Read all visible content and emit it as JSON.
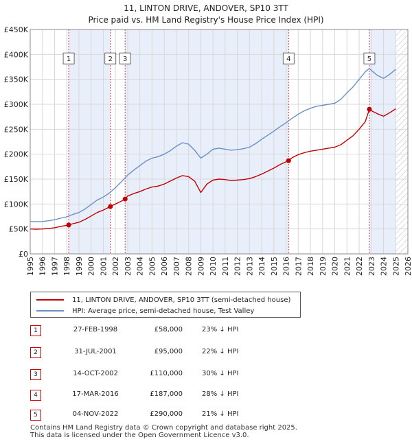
{
  "title_line1": "11, LINTON DRIVE, ANDOVER, SP10 3TT",
  "title_line2": "Price paid vs. HM Land Registry's House Price Index (HPI)",
  "chart_data": {
    "type": "line",
    "xlim": [
      1995,
      2026
    ],
    "ylim": [
      0,
      450000
    ],
    "x_ticks": [
      1995,
      1996,
      1997,
      1998,
      1999,
      2000,
      2001,
      2002,
      2003,
      2004,
      2005,
      2006,
      2007,
      2008,
      2009,
      2010,
      2011,
      2012,
      2013,
      2014,
      2015,
      2016,
      2017,
      2018,
      2019,
      2020,
      2021,
      2022,
      2023,
      2024,
      2025,
      2026
    ],
    "y_ticks": [
      {
        "value": 0,
        "label": "£0"
      },
      {
        "value": 50000,
        "label": "£50K"
      },
      {
        "value": 100000,
        "label": "£100K"
      },
      {
        "value": 150000,
        "label": "£150K"
      },
      {
        "value": 200000,
        "label": "£200K"
      },
      {
        "value": 250000,
        "label": "£250K"
      },
      {
        "value": 300000,
        "label": "£300K"
      },
      {
        "value": 350000,
        "label": "£350K"
      },
      {
        "value": 400000,
        "label": "£400K"
      },
      {
        "value": 450000,
        "label": "£450K"
      }
    ],
    "shaded_ranges": [
      [
        1998.16,
        2001.58
      ],
      [
        2002.79,
        2016.21
      ],
      [
        2022.84,
        2025.0
      ]
    ],
    "hatched_range": [
      2025.0,
      2026.0
    ],
    "series": [
      {
        "name": "HPI: Average price, semi-detached house, Test Valley",
        "color": "#6a8fc8",
        "points": [
          [
            1995,
            65000
          ],
          [
            1995.5,
            64500
          ],
          [
            1996,
            65000
          ],
          [
            1996.5,
            66500
          ],
          [
            1997,
            68500
          ],
          [
            1997.5,
            71500
          ],
          [
            1998,
            74500
          ],
          [
            1998.5,
            79000
          ],
          [
            1999,
            83000
          ],
          [
            1999.5,
            90000
          ],
          [
            2000,
            99000
          ],
          [
            2000.5,
            108000
          ],
          [
            2001,
            114000
          ],
          [
            2001.5,
            122000
          ],
          [
            2002,
            133000
          ],
          [
            2002.5,
            145000
          ],
          [
            2003,
            158000
          ],
          [
            2003.5,
            168000
          ],
          [
            2004,
            177000
          ],
          [
            2004.5,
            186000
          ],
          [
            2005,
            192000
          ],
          [
            2005.5,
            195000
          ],
          [
            2006,
            200000
          ],
          [
            2006.5,
            207000
          ],
          [
            2007,
            216000
          ],
          [
            2007.5,
            223000
          ],
          [
            2008,
            220000
          ],
          [
            2008.5,
            208000
          ],
          [
            2009,
            192000
          ],
          [
            2009.5,
            200000
          ],
          [
            2010,
            210000
          ],
          [
            2010.5,
            212000
          ],
          [
            2011,
            210000
          ],
          [
            2011.5,
            208000
          ],
          [
            2012,
            209000
          ],
          [
            2012.5,
            211000
          ],
          [
            2013,
            214000
          ],
          [
            2013.5,
            221000
          ],
          [
            2014,
            230000
          ],
          [
            2014.5,
            238000
          ],
          [
            2015,
            246000
          ],
          [
            2015.5,
            255000
          ],
          [
            2016,
            263000
          ],
          [
            2016.5,
            272000
          ],
          [
            2017,
            280000
          ],
          [
            2017.5,
            287000
          ],
          [
            2018,
            292000
          ],
          [
            2018.5,
            296000
          ],
          [
            2019,
            298000
          ],
          [
            2019.5,
            300000
          ],
          [
            2020,
            302000
          ],
          [
            2020.5,
            310000
          ],
          [
            2021,
            323000
          ],
          [
            2021.5,
            335000
          ],
          [
            2022,
            350000
          ],
          [
            2022.5,
            365000
          ],
          [
            2022.84,
            372000
          ],
          [
            2023,
            368000
          ],
          [
            2023.5,
            358000
          ],
          [
            2024,
            352000
          ],
          [
            2024.5,
            360000
          ],
          [
            2025,
            370000
          ]
        ]
      },
      {
        "name": "11, LINTON DRIVE, ANDOVER, SP10 3TT (semi-detached house)",
        "color": "#c00000",
        "points": [
          [
            1995,
            50000
          ],
          [
            1995.5,
            49500
          ],
          [
            1996,
            50000
          ],
          [
            1996.5,
            51000
          ],
          [
            1997,
            52500
          ],
          [
            1997.5,
            55000
          ],
          [
            1998.16,
            58000
          ],
          [
            1998.5,
            60500
          ],
          [
            1999,
            63500
          ],
          [
            1999.5,
            69000
          ],
          [
            2000,
            76000
          ],
          [
            2000.5,
            83000
          ],
          [
            2001,
            88000
          ],
          [
            2001.58,
            95000
          ],
          [
            2002,
            100000
          ],
          [
            2002.5,
            106000
          ],
          [
            2002.79,
            110000
          ],
          [
            2003,
            116000
          ],
          [
            2003.5,
            121000
          ],
          [
            2004,
            125000
          ],
          [
            2004.5,
            130000
          ],
          [
            2005,
            134000
          ],
          [
            2005.5,
            136000
          ],
          [
            2006,
            140000
          ],
          [
            2006.5,
            146000
          ],
          [
            2007,
            152000
          ],
          [
            2007.5,
            157000
          ],
          [
            2008,
            155000
          ],
          [
            2008.5,
            146000
          ],
          [
            2009,
            123000
          ],
          [
            2009.5,
            140000
          ],
          [
            2010,
            148000
          ],
          [
            2010.5,
            150000
          ],
          [
            2011,
            149000
          ],
          [
            2011.5,
            147000
          ],
          [
            2012,
            148000
          ],
          [
            2012.5,
            149000
          ],
          [
            2013,
            151000
          ],
          [
            2013.5,
            155000
          ],
          [
            2014,
            160000
          ],
          [
            2014.5,
            166000
          ],
          [
            2015,
            172000
          ],
          [
            2015.5,
            179000
          ],
          [
            2016.21,
            187000
          ],
          [
            2016.5,
            193000
          ],
          [
            2017,
            199000
          ],
          [
            2017.5,
            203000
          ],
          [
            2018,
            206000
          ],
          [
            2018.5,
            208000
          ],
          [
            2019,
            210000
          ],
          [
            2019.5,
            212000
          ],
          [
            2020,
            214000
          ],
          [
            2020.5,
            219000
          ],
          [
            2021,
            228000
          ],
          [
            2021.5,
            237000
          ],
          [
            2022,
            250000
          ],
          [
            2022.5,
            265000
          ],
          [
            2022.84,
            290000
          ],
          [
            2023,
            287000
          ],
          [
            2023.5,
            281000
          ],
          [
            2024,
            276000
          ],
          [
            2024.5,
            283000
          ],
          [
            2025,
            291000
          ]
        ]
      }
    ],
    "markers": [
      {
        "id": "1",
        "x": 1998.16,
        "y": 58000
      },
      {
        "id": "2",
        "x": 2001.58,
        "y": 95000
      },
      {
        "id": "3",
        "x": 2002.79,
        "y": 110000
      },
      {
        "id": "4",
        "x": 2016.21,
        "y": 187000
      },
      {
        "id": "5",
        "x": 2022.84,
        "y": 290000
      }
    ],
    "marker_label_value": 392000
  },
  "legend": {
    "property": "11, LINTON DRIVE, ANDOVER, SP10 3TT (semi-detached house)",
    "hpi": "HPI: Average price, semi-detached house, Test Valley",
    "property_color": "#c00000",
    "hpi_color": "#6a8fc8"
  },
  "transactions": [
    {
      "num": "1",
      "date": "27-FEB-1998",
      "price": "£58,000",
      "hpi": "23% ↓ HPI"
    },
    {
      "num": "2",
      "date": "31-JUL-2001",
      "price": "£95,000",
      "hpi": "22% ↓ HPI"
    },
    {
      "num": "3",
      "date": "14-OCT-2002",
      "price": "£110,000",
      "hpi": "30% ↓ HPI"
    },
    {
      "num": "4",
      "date": "17-MAR-2016",
      "price": "£187,000",
      "hpi": "28% ↓ HPI"
    },
    {
      "num": "5",
      "date": "04-NOV-2022",
      "price": "£290,000",
      "hpi": "21% ↓ HPI"
    }
  ],
  "footer": {
    "line1": "Contains HM Land Registry data © Crown copyright and database right 2025.",
    "line2": "This data is licensed under the Open Government Licence v3.0."
  }
}
